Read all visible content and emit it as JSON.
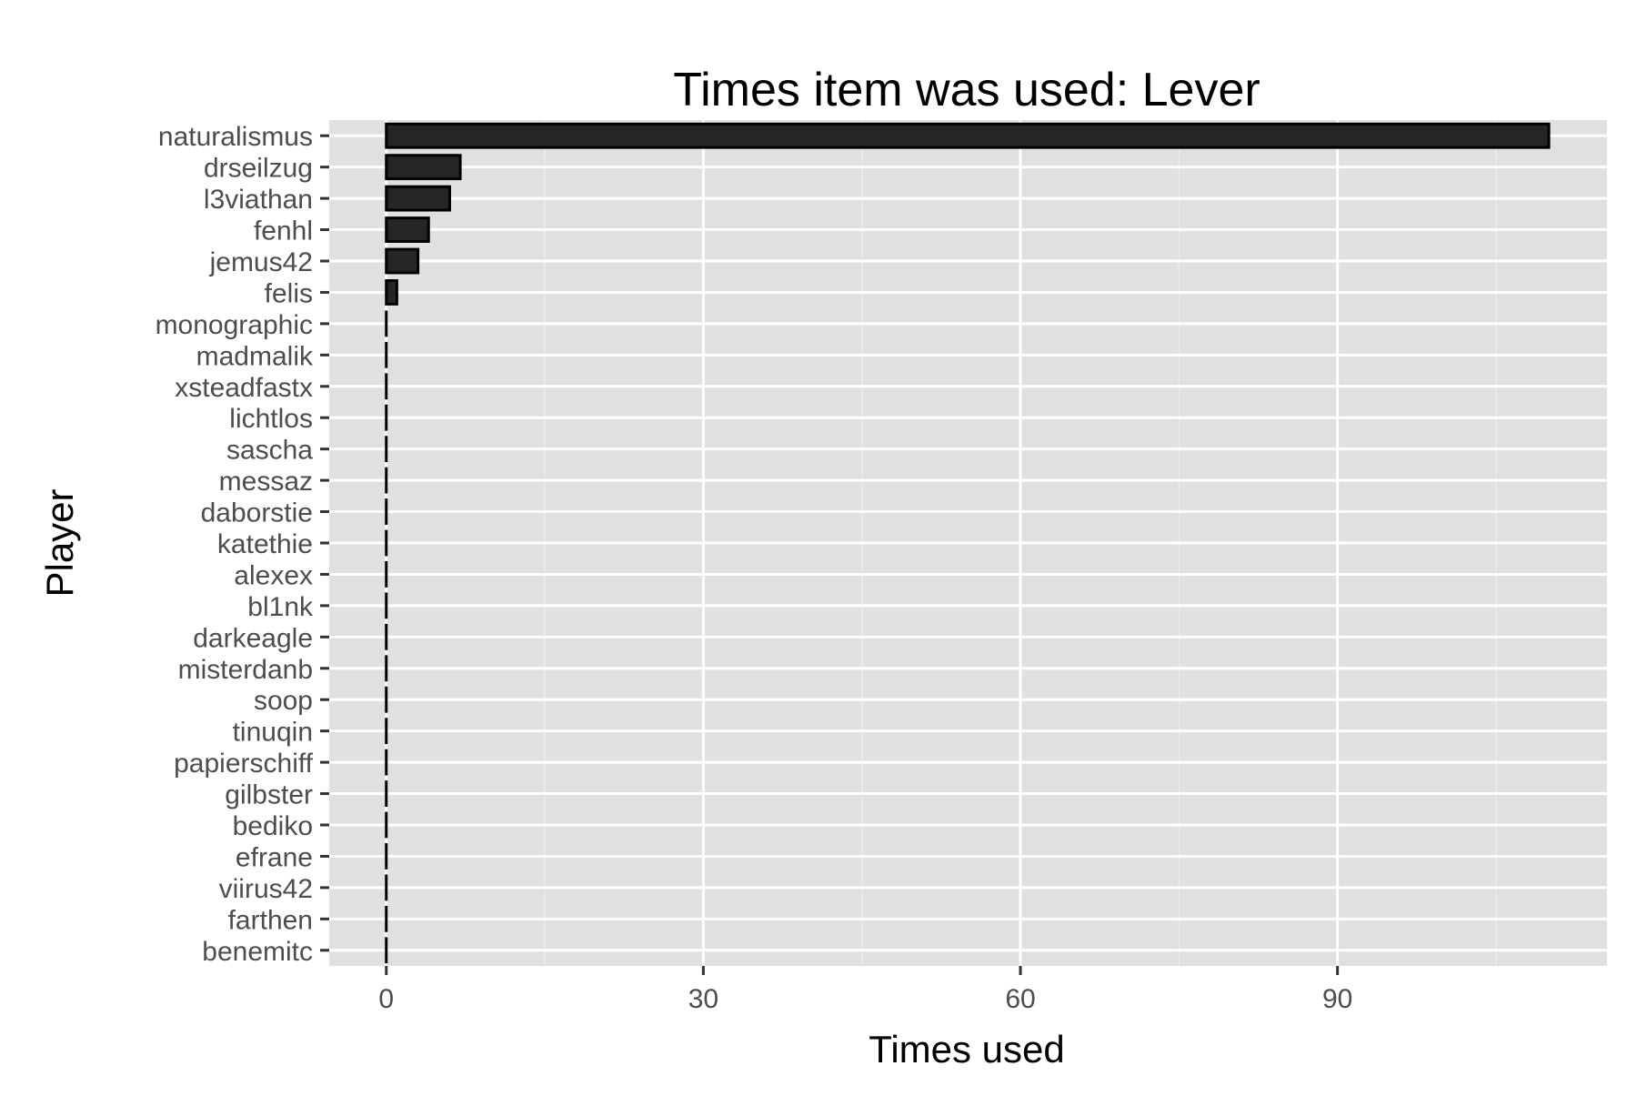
{
  "chart_data": {
    "type": "bar",
    "orientation": "horizontal",
    "title": "Times item was used: Lever",
    "xlabel": "Times used",
    "ylabel": "Player",
    "xlim": [
      -5.4,
      115.5
    ],
    "xticks": [
      0,
      30,
      60,
      90
    ],
    "xtick_labels": [
      "0",
      "30",
      "60",
      "90"
    ],
    "grid": true,
    "legend": "none",
    "categories": [
      "naturalismus",
      "drseilzug",
      "l3viathan",
      "fenhl",
      "jemus42",
      "felis",
      "monographic",
      "madmalik",
      "xsteadfastx",
      "lichtlos",
      "sascha",
      "messaz",
      "daborstie",
      "katethie",
      "alexex",
      "bl1nk",
      "darkeagle",
      "misterdanb",
      "soop",
      "tinuqin",
      "papierschiff",
      "gilbster",
      "bediko",
      "efrane",
      "viirus42",
      "farthen",
      "benemitc"
    ],
    "values": [
      110,
      7,
      6,
      4,
      3,
      1,
      0,
      0,
      0,
      0,
      0,
      0,
      0,
      0,
      0,
      0,
      0,
      0,
      0,
      0,
      0,
      0,
      0,
      0,
      0,
      0,
      0
    ],
    "colors": {
      "bar_fill": "#262626",
      "bar_stroke": "#000000",
      "panel_background": "#e0e0e0",
      "grid_major": "#ffffff",
      "grid_minor": "#ececec",
      "tick_text": "#4d4d4d",
      "title_text": "#000000"
    }
  }
}
